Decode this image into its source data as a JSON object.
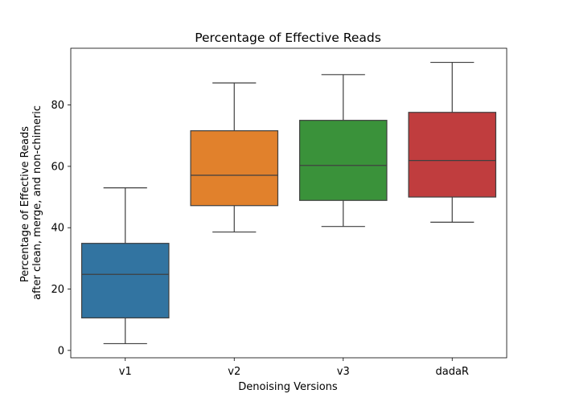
{
  "chart_data": {
    "type": "box",
    "title": "Percentage of Effective Reads",
    "xlabel": "Denoising Versions",
    "ylabel_lines": [
      "Percentage of Effective Reads",
      "after clean, merge, and non-chimeric"
    ],
    "categories": [
      "v1",
      "v2",
      "v3",
      "dadaR"
    ],
    "colors": [
      "#3274a1",
      "#e1812c",
      "#3a923a",
      "#c03d3e"
    ],
    "boxes": [
      {
        "name": "v1",
        "whisker_low": 2.2,
        "q1": 10.6,
        "median": 24.8,
        "q3": 34.9,
        "whisker_high": 53.0
      },
      {
        "name": "v2",
        "whisker_low": 38.6,
        "q1": 47.2,
        "median": 57.1,
        "q3": 71.6,
        "whisker_high": 87.2
      },
      {
        "name": "v3",
        "whisker_low": 40.4,
        "q1": 48.9,
        "median": 60.3,
        "q3": 75.0,
        "whisker_high": 89.9
      },
      {
        "name": "dadaR",
        "whisker_low": 41.8,
        "q1": 50.0,
        "median": 61.9,
        "q3": 77.6,
        "whisker_high": 93.9
      }
    ],
    "yticks": [
      0,
      20,
      40,
      60,
      80
    ],
    "ylim": [
      -2.4,
      98.5
    ],
    "grid": false,
    "legend": "none"
  }
}
